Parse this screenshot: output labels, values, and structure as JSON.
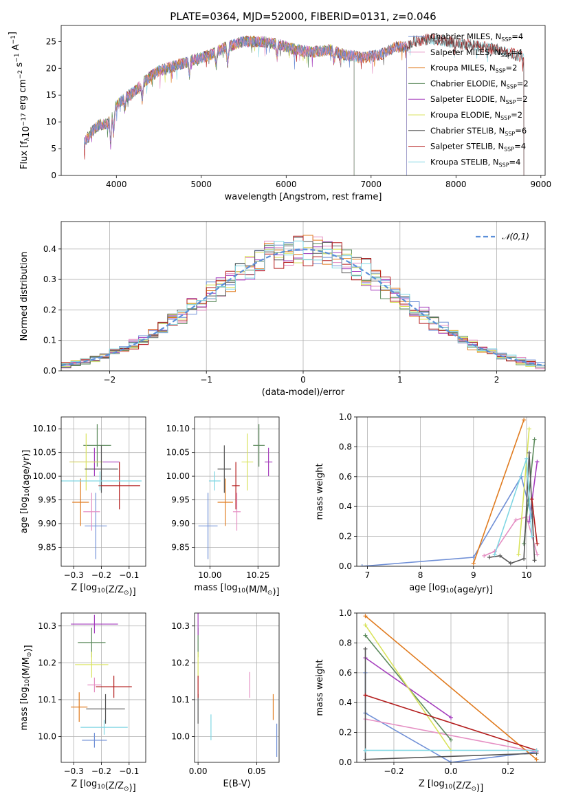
{
  "figure": {
    "title": "PLATE=0364, MJD=52000, FIBERID=0131, z=0.046"
  },
  "colors": {
    "Chabrier MILES": "#6f8fd6",
    "Salpeter MILES": "#e58fc3",
    "Kroupa MILES": "#e07b1f",
    "Chabrier ELODIE": "#5b8a5b",
    "Salpeter ELODIE": "#a53ebd",
    "Kroupa ELODIE": "#d9e35c",
    "Chabrier STELIB": "#555555",
    "Salpeter STELIB": "#b31c1c",
    "Kroupa STELIB": "#7fd6e3"
  },
  "chart_data": [
    {
      "id": "spectrum",
      "type": "line",
      "xlabel": "wavelength [Angstrom, rest frame]",
      "ylabel": "Flux [f_λ10^-17 erg cm^-2 s^-1 A^-1]",
      "xlim": [
        3350,
        9050
      ],
      "ylim": [
        0,
        28
      ],
      "xticks": [
        4000,
        5000,
        6000,
        7000,
        8000,
        9000
      ],
      "yticks": [
        0,
        5,
        10,
        15,
        20,
        25
      ],
      "grid": false,
      "legend_position": "top-right",
      "legend": [
        {
          "name": "Chabrier MILES",
          "nssp": "4"
        },
        {
          "name": "Salpeter MILES",
          "nssp": "4"
        },
        {
          "name": "Kroupa MILES",
          "nssp": "2"
        },
        {
          "name": "Chabrier ELODIE",
          "nssp": "2"
        },
        {
          "name": "Salpeter ELODIE",
          "nssp": "2"
        },
        {
          "name": "Kroupa ELODIE",
          "nssp": "2"
        },
        {
          "name": "Chabrier STELIB",
          "nssp": "6"
        },
        {
          "name": "Salpeter STELIB",
          "nssp": "4"
        },
        {
          "name": "Kroupa STELIB",
          "nssp": "4"
        }
      ],
      "continuum": [
        [
          3620,
          6
        ],
        [
          3700,
          8
        ],
        [
          3800,
          9.5
        ],
        [
          3900,
          9.5
        ],
        [
          4000,
          13
        ],
        [
          4100,
          14.5
        ],
        [
          4200,
          15.5
        ],
        [
          4300,
          17
        ],
        [
          4400,
          18.5
        ],
        [
          4500,
          19.5
        ],
        [
          4700,
          20.5
        ],
        [
          4900,
          21.5
        ],
        [
          5100,
          22.5
        ],
        [
          5300,
          24
        ],
        [
          5500,
          25
        ],
        [
          5700,
          25
        ],
        [
          5900,
          24.5
        ],
        [
          6100,
          23.5
        ],
        [
          6300,
          23
        ],
        [
          6500,
          23.5
        ],
        [
          6700,
          22.5
        ],
        [
          6900,
          22
        ],
        [
          7100,
          22.5
        ],
        [
          7300,
          24
        ],
        [
          7420,
          24
        ],
        [
          7500,
          25
        ],
        [
          7700,
          25.5
        ],
        [
          7900,
          25
        ],
        [
          8100,
          24.5
        ],
        [
          8300,
          24
        ],
        [
          8500,
          23.5
        ],
        [
          8700,
          22.5
        ],
        [
          8800,
          22
        ]
      ],
      "coverage_xmax": {
        "MILES": 7420,
        "ELODIE": 6800,
        "STELIB": 8800
      },
      "dips": [
        [
          3933,
          10
        ],
        [
          3968,
          8
        ],
        [
          4101,
          4
        ],
        [
          4305,
          6
        ],
        [
          4861,
          5
        ],
        [
          5175,
          6
        ],
        [
          5310,
          7
        ],
        [
          5892,
          5
        ],
        [
          6563,
          4
        ]
      ]
    },
    {
      "id": "residuals",
      "type": "area",
      "xlabel": "(data-model)/error",
      "ylabel": "Normed distribution",
      "xlim": [
        -2.5,
        2.5
      ],
      "ylim": [
        0,
        0.49
      ],
      "xticks": [
        -2,
        -1,
        0,
        1,
        2
      ],
      "yticks": [
        0.0,
        0.1,
        0.2,
        0.3,
        0.4
      ],
      "grid": true,
      "legend_position": "top-right",
      "reference": {
        "name": "𝒩(0,1)",
        "mean": 0,
        "sigma": 1,
        "color": "#5b8fd9"
      },
      "bin_width": 0.1
    },
    {
      "id": "age-vs-Z",
      "type": "scatter",
      "xlabel": "Z [log10(Z/Z☉)]",
      "ylabel": "age  [log10(age/yr)]",
      "xlim": [
        -0.345,
        -0.04
      ],
      "ylim": [
        9.81,
        10.125
      ],
      "xticks": [
        -0.3,
        -0.2,
        -0.1
      ],
      "yticks": [
        9.85,
        9.9,
        9.95,
        10.0,
        10.05,
        10.1
      ],
      "grid": true,
      "points": [
        {
          "model": "Chabrier MILES",
          "x": -0.22,
          "xerr": 0.04,
          "y": 9.895,
          "yerr": 0.07
        },
        {
          "model": "Salpeter MILES",
          "x": -0.235,
          "xerr": 0.03,
          "y": 9.925,
          "yerr": 0.04
        },
        {
          "model": "Kroupa MILES",
          "x": -0.275,
          "xerr": 0.03,
          "y": 9.945,
          "yerr": 0.05
        },
        {
          "model": "Chabrier ELODIE",
          "x": -0.215,
          "xerr": 0.05,
          "y": 10.065,
          "yerr": 0.045
        },
        {
          "model": "Salpeter ELODIE",
          "x": -0.225,
          "xerr": 0.09,
          "y": 10.03,
          "yerr": 0.03
        },
        {
          "model": "Kroupa ELODIE",
          "x": -0.255,
          "xerr": 0.06,
          "y": 10.03,
          "yerr": 0.06
        },
        {
          "model": "Chabrier STELIB",
          "x": -0.2,
          "xerr": 0.06,
          "y": 10.015,
          "yerr": 0.05
        },
        {
          "model": "Salpeter STELIB",
          "x": -0.135,
          "xerr": 0.075,
          "y": 9.98,
          "yerr": 0.05
        },
        {
          "model": "Kroupa STELIB",
          "x": -0.205,
          "xerr": 0.15,
          "y": 9.99,
          "yerr": 0.02
        }
      ]
    },
    {
      "id": "age-vs-mass",
      "type": "scatter",
      "xlabel": "mass [log10(M/M☉)]",
      "ylabel": "",
      "xlim": [
        9.92,
        10.36
      ],
      "ylim": [
        9.81,
        10.125
      ],
      "xticks": [
        10.0,
        10.25
      ],
      "yticks": [
        9.85,
        9.9,
        9.95,
        10.0,
        10.05,
        10.1
      ],
      "grid": true,
      "points": [
        {
          "model": "Chabrier MILES",
          "x": 9.99,
          "xerr": 0.05,
          "y": 9.895,
          "yerr": 0.07
        },
        {
          "model": "Salpeter MILES",
          "x": 10.14,
          "xerr": 0.02,
          "y": 9.925,
          "yerr": 0.04
        },
        {
          "model": "Kroupa MILES",
          "x": 10.08,
          "xerr": 0.04,
          "y": 9.945,
          "yerr": 0.05
        },
        {
          "model": "Chabrier ELODIE",
          "x": 10.255,
          "xerr": 0.03,
          "y": 10.065,
          "yerr": 0.045
        },
        {
          "model": "Salpeter ELODIE",
          "x": 10.305,
          "xerr": 0.02,
          "y": 10.03,
          "yerr": 0.03
        },
        {
          "model": "Kroupa ELODIE",
          "x": 10.195,
          "xerr": 0.03,
          "y": 10.03,
          "yerr": 0.06
        },
        {
          "model": "Chabrier STELIB",
          "x": 10.075,
          "xerr": 0.035,
          "y": 10.015,
          "yerr": 0.05
        },
        {
          "model": "Salpeter STELIB",
          "x": 10.135,
          "xerr": 0.02,
          "y": 9.98,
          "yerr": 0.05
        },
        {
          "model": "Kroupa STELIB",
          "x": 10.025,
          "xerr": 0.03,
          "y": 9.99,
          "yerr": 0.02
        }
      ]
    },
    {
      "id": "weight-vs-age",
      "type": "line",
      "xlabel": "age  [log10(age/yr)]",
      "ylabel": "mass weight",
      "xlim": [
        6.8,
        10.35
      ],
      "ylim": [
        0,
        1.0
      ],
      "xticks": [
        7,
        8,
        9,
        10
      ],
      "yticks": [
        0.0,
        0.2,
        0.4,
        0.6,
        0.8,
        1.0
      ],
      "grid": true,
      "series": [
        {
          "model": "Chabrier MILES",
          "points": [
            [
              6.9,
              0.0
            ],
            [
              9.0,
              0.06
            ],
            [
              9.9,
              0.6
            ],
            [
              10.1,
              0.33
            ]
          ]
        },
        {
          "model": "Salpeter MILES",
          "points": [
            [
              9.2,
              0.07
            ],
            [
              9.4,
              0.1
            ],
            [
              9.8,
              0.31
            ],
            [
              10.0,
              0.33
            ],
            [
              10.2,
              0.08
            ]
          ]
        },
        {
          "model": "Kroupa MILES",
          "points": [
            [
              9.0,
              0.02
            ],
            [
              9.95,
              0.98
            ]
          ]
        },
        {
          "model": "Chabrier ELODIE",
          "points": [
            [
              9.95,
              0.15
            ],
            [
              10.15,
              0.85
            ]
          ]
        },
        {
          "model": "Salpeter ELODIE",
          "points": [
            [
              10.05,
              0.3
            ],
            [
              10.2,
              0.7
            ]
          ]
        },
        {
          "model": "Kroupa ELODIE",
          "points": [
            [
              9.85,
              0.08
            ],
            [
              10.05,
              0.92
            ]
          ]
        },
        {
          "model": "Chabrier STELIB",
          "points": [
            [
              9.3,
              0.06
            ],
            [
              9.5,
              0.07
            ],
            [
              9.7,
              0.02
            ],
            [
              9.95,
              0.05
            ],
            [
              10.05,
              0.76
            ],
            [
              10.15,
              0.04
            ]
          ]
        },
        {
          "model": "Salpeter STELIB",
          "points": [
            [
              10.1,
              0.45
            ],
            [
              10.2,
              0.15
            ]
          ]
        },
        {
          "model": "Kroupa STELIB",
          "points": [
            [
              9.4,
              0.08
            ],
            [
              10.0,
              0.72
            ],
            [
              10.1,
              0.2
            ]
          ]
        }
      ]
    },
    {
      "id": "mass-vs-Z",
      "type": "scatter",
      "xlabel": "Z [log10(Z/Z☉)]",
      "ylabel": "mass [log10(M/M☉)]",
      "xlim": [
        -0.345,
        -0.04
      ],
      "ylim": [
        9.93,
        10.335
      ],
      "xticks": [
        -0.3,
        -0.2,
        -0.1
      ],
      "yticks": [
        10.0,
        10.1,
        10.2,
        10.3
      ],
      "grid": true,
      "points": [
        {
          "model": "Chabrier MILES",
          "x": -0.225,
          "xerr": 0.045,
          "y": 9.99,
          "yerr": 0.02
        },
        {
          "model": "Salpeter MILES",
          "x": -0.225,
          "xerr": 0.025,
          "y": 10.14,
          "yerr": 0.02
        },
        {
          "model": "Kroupa MILES",
          "x": -0.28,
          "xerr": 0.03,
          "y": 10.08,
          "yerr": 0.04
        },
        {
          "model": "Chabrier ELODIE",
          "x": -0.235,
          "xerr": 0.05,
          "y": 10.255,
          "yerr": 0.04
        },
        {
          "model": "Salpeter ELODIE",
          "x": -0.225,
          "xerr": 0.085,
          "y": 10.305,
          "yerr": 0.025
        },
        {
          "model": "Kroupa ELODIE",
          "x": -0.235,
          "xerr": 0.06,
          "y": 10.195,
          "yerr": 0.035
        },
        {
          "model": "Chabrier STELIB",
          "x": -0.185,
          "xerr": 0.07,
          "y": 10.075,
          "yerr": 0.04
        },
        {
          "model": "Salpeter STELIB",
          "x": -0.155,
          "xerr": 0.065,
          "y": 10.135,
          "yerr": 0.03
        },
        {
          "model": "Kroupa STELIB",
          "x": -0.19,
          "xerr": 0.085,
          "y": 10.025,
          "yerr": 0.02
        }
      ]
    },
    {
      "id": "mass-vs-EBV",
      "type": "scatter",
      "xlabel": "E(B-V)",
      "ylabel": "",
      "xlim": [
        -0.003,
        0.069
      ],
      "ylim": [
        9.93,
        10.335
      ],
      "xticks": [
        0.0,
        0.05
      ],
      "yticks": [
        10.0,
        10.1,
        10.2,
        10.3
      ],
      "grid": true,
      "points": [
        {
          "model": "Chabrier MILES",
          "x": 0.067,
          "y": 9.99,
          "yerr": 0.045
        },
        {
          "model": "Salpeter MILES",
          "x": 0.044,
          "y": 10.14,
          "yerr": 0.035
        },
        {
          "model": "Kroupa MILES",
          "x": 0.064,
          "y": 10.08,
          "yerr": 0.035
        },
        {
          "model": "Chabrier ELODIE",
          "x": 0.0,
          "y": 10.255,
          "yerr": 0.04
        },
        {
          "model": "Salpeter ELODIE",
          "x": 0.0,
          "y": 10.305,
          "yerr": 0.03
        },
        {
          "model": "Kroupa ELODIE",
          "x": 0.0,
          "y": 10.195,
          "yerr": 0.035
        },
        {
          "model": "Chabrier STELIB",
          "x": 0.0,
          "y": 10.075,
          "yerr": 0.04
        },
        {
          "model": "Salpeter STELIB",
          "x": 0.0,
          "y": 10.135,
          "yerr": 0.03
        },
        {
          "model": "Kroupa STELIB",
          "x": 0.011,
          "y": 10.025,
          "yerr": 0.035
        }
      ]
    },
    {
      "id": "weight-vs-Z",
      "type": "line",
      "xlabel": "Z [log10(Z/Z☉)]",
      "ylabel": "mass weight",
      "xlim": [
        -0.33,
        0.33
      ],
      "ylim": [
        0,
        1.0
      ],
      "xticks": [
        -0.2,
        0.0,
        0.2
      ],
      "yticks": [
        0.0,
        0.2,
        0.4,
        0.6,
        0.8,
        1.0
      ],
      "grid": true,
      "series": [
        {
          "model": "Chabrier MILES",
          "points": [
            [
              -0.3,
              0.6
            ],
            [
              -0.3,
              0.33
            ],
            [
              0.0,
              0.0
            ],
            [
              0.3,
              0.07
            ]
          ]
        },
        {
          "model": "Salpeter MILES",
          "points": [
            [
              -0.3,
              0.29
            ],
            [
              0.3,
              0.07
            ]
          ]
        },
        {
          "model": "Kroupa MILES",
          "points": [
            [
              -0.3,
              0.98
            ],
            [
              0.3,
              0.02
            ]
          ]
        },
        {
          "model": "Chabrier ELODIE",
          "points": [
            [
              -0.3,
              0.85
            ],
            [
              0.0,
              0.15
            ]
          ]
        },
        {
          "model": "Salpeter ELODIE",
          "points": [
            [
              -0.3,
              0.7
            ],
            [
              0.0,
              0.3
            ]
          ]
        },
        {
          "model": "Kroupa ELODIE",
          "points": [
            [
              -0.3,
              0.92
            ],
            [
              0.0,
              0.08
            ]
          ]
        },
        {
          "model": "Chabrier STELIB",
          "points": [
            [
              -0.3,
              0.76
            ],
            [
              -0.3,
              0.02
            ],
            [
              0.3,
              0.06
            ]
          ]
        },
        {
          "model": "Salpeter STELIB",
          "points": [
            [
              -0.3,
              0.45
            ],
            [
              0.3,
              0.08
            ]
          ]
        },
        {
          "model": "Kroupa STELIB",
          "points": [
            [
              -0.3,
              0.08
            ],
            [
              0.3,
              0.08
            ]
          ]
        }
      ]
    }
  ]
}
